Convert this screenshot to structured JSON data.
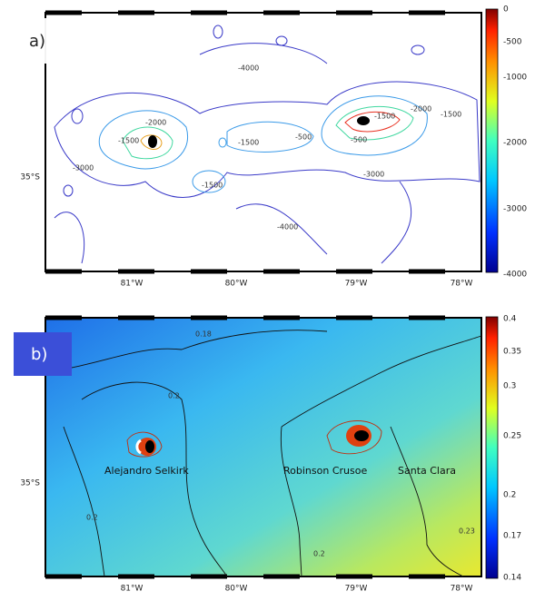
{
  "panels": [
    {
      "label": "a)",
      "x_labels": [
        "81°W",
        "80°W",
        "79°W",
        "78°W"
      ],
      "y_labels": [
        "35°S"
      ],
      "colorbar_ticks": [
        "0",
        "-500",
        "-1000",
        "-2000",
        "-3000",
        "-4000"
      ],
      "contour_labels": [
        "-1500",
        "-2000",
        "-3000",
        "-1500",
        "-500",
        "-1500",
        "-4000",
        "-1500",
        "-500",
        "-2000",
        "-3000",
        "-1500",
        "-4000"
      ]
    },
    {
      "label": "b)",
      "x_labels": [
        "81°W",
        "80°W",
        "79°W",
        "78°W"
      ],
      "y_labels": [
        "35°S"
      ],
      "colorbar_ticks": [
        "0.4",
        "0.35",
        "0.3",
        "0.25",
        "0.2",
        "0.17",
        "0.14"
      ],
      "place_names": [
        "Alejandro Selkirk",
        "Robinson Crusoe",
        "Santa Clara"
      ],
      "contour_labels": [
        "0.18",
        "0.2",
        "0.2",
        "0.23",
        "0.2"
      ]
    }
  ]
}
